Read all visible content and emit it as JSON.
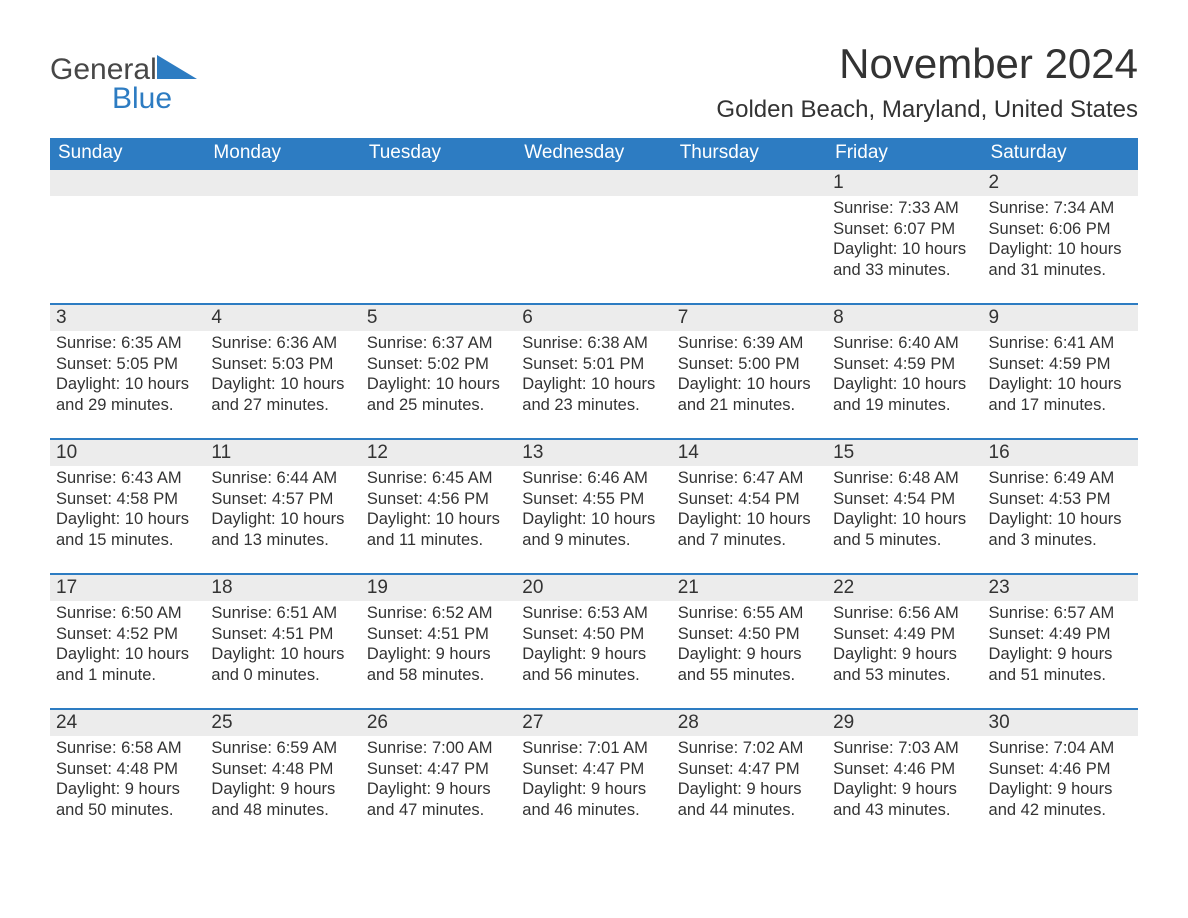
{
  "brand": {
    "name1": "General",
    "name2": "Blue",
    "accent": "#2d7cc2",
    "text_color": "#474747"
  },
  "title": "November 2024",
  "location": "Golden Beach, Maryland, United States",
  "weekdays": [
    "Sunday",
    "Monday",
    "Tuesday",
    "Wednesday",
    "Thursday",
    "Friday",
    "Saturday"
  ],
  "colors": {
    "header_bg": "#2d7cc2",
    "header_text": "#ffffff",
    "daynum_bg": "#ececec",
    "row_border": "#2d7cc2",
    "body_text": "#333333",
    "background": "#ffffff"
  },
  "fonts": {
    "month_title_size": 42,
    "location_size": 24,
    "weekday_size": 19,
    "daynum_size": 19,
    "body_size": 16.5
  },
  "layout": {
    "columns": 7,
    "rows": 5,
    "first_day_column": 5
  },
  "days": [
    {
      "n": "1",
      "sunrise": "Sunrise: 7:33 AM",
      "sunset": "Sunset: 6:07 PM",
      "dayl1": "Daylight: 10 hours",
      "dayl2": "and 33 minutes."
    },
    {
      "n": "2",
      "sunrise": "Sunrise: 7:34 AM",
      "sunset": "Sunset: 6:06 PM",
      "dayl1": "Daylight: 10 hours",
      "dayl2": "and 31 minutes."
    },
    {
      "n": "3",
      "sunrise": "Sunrise: 6:35 AM",
      "sunset": "Sunset: 5:05 PM",
      "dayl1": "Daylight: 10 hours",
      "dayl2": "and 29 minutes."
    },
    {
      "n": "4",
      "sunrise": "Sunrise: 6:36 AM",
      "sunset": "Sunset: 5:03 PM",
      "dayl1": "Daylight: 10 hours",
      "dayl2": "and 27 minutes."
    },
    {
      "n": "5",
      "sunrise": "Sunrise: 6:37 AM",
      "sunset": "Sunset: 5:02 PM",
      "dayl1": "Daylight: 10 hours",
      "dayl2": "and 25 minutes."
    },
    {
      "n": "6",
      "sunrise": "Sunrise: 6:38 AM",
      "sunset": "Sunset: 5:01 PM",
      "dayl1": "Daylight: 10 hours",
      "dayl2": "and 23 minutes."
    },
    {
      "n": "7",
      "sunrise": "Sunrise: 6:39 AM",
      "sunset": "Sunset: 5:00 PM",
      "dayl1": "Daylight: 10 hours",
      "dayl2": "and 21 minutes."
    },
    {
      "n": "8",
      "sunrise": "Sunrise: 6:40 AM",
      "sunset": "Sunset: 4:59 PM",
      "dayl1": "Daylight: 10 hours",
      "dayl2": "and 19 minutes."
    },
    {
      "n": "9",
      "sunrise": "Sunrise: 6:41 AM",
      "sunset": "Sunset: 4:59 PM",
      "dayl1": "Daylight: 10 hours",
      "dayl2": "and 17 minutes."
    },
    {
      "n": "10",
      "sunrise": "Sunrise: 6:43 AM",
      "sunset": "Sunset: 4:58 PM",
      "dayl1": "Daylight: 10 hours",
      "dayl2": "and 15 minutes."
    },
    {
      "n": "11",
      "sunrise": "Sunrise: 6:44 AM",
      "sunset": "Sunset: 4:57 PM",
      "dayl1": "Daylight: 10 hours",
      "dayl2": "and 13 minutes."
    },
    {
      "n": "12",
      "sunrise": "Sunrise: 6:45 AM",
      "sunset": "Sunset: 4:56 PM",
      "dayl1": "Daylight: 10 hours",
      "dayl2": "and 11 minutes."
    },
    {
      "n": "13",
      "sunrise": "Sunrise: 6:46 AM",
      "sunset": "Sunset: 4:55 PM",
      "dayl1": "Daylight: 10 hours",
      "dayl2": "and 9 minutes."
    },
    {
      "n": "14",
      "sunrise": "Sunrise: 6:47 AM",
      "sunset": "Sunset: 4:54 PM",
      "dayl1": "Daylight: 10 hours",
      "dayl2": "and 7 minutes."
    },
    {
      "n": "15",
      "sunrise": "Sunrise: 6:48 AM",
      "sunset": "Sunset: 4:54 PM",
      "dayl1": "Daylight: 10 hours",
      "dayl2": "and 5 minutes."
    },
    {
      "n": "16",
      "sunrise": "Sunrise: 6:49 AM",
      "sunset": "Sunset: 4:53 PM",
      "dayl1": "Daylight: 10 hours",
      "dayl2": "and 3 minutes."
    },
    {
      "n": "17",
      "sunrise": "Sunrise: 6:50 AM",
      "sunset": "Sunset: 4:52 PM",
      "dayl1": "Daylight: 10 hours",
      "dayl2": "and 1 minute."
    },
    {
      "n": "18",
      "sunrise": "Sunrise: 6:51 AM",
      "sunset": "Sunset: 4:51 PM",
      "dayl1": "Daylight: 10 hours",
      "dayl2": "and 0 minutes."
    },
    {
      "n": "19",
      "sunrise": "Sunrise: 6:52 AM",
      "sunset": "Sunset: 4:51 PM",
      "dayl1": "Daylight: 9 hours",
      "dayl2": "and 58 minutes."
    },
    {
      "n": "20",
      "sunrise": "Sunrise: 6:53 AM",
      "sunset": "Sunset: 4:50 PM",
      "dayl1": "Daylight: 9 hours",
      "dayl2": "and 56 minutes."
    },
    {
      "n": "21",
      "sunrise": "Sunrise: 6:55 AM",
      "sunset": "Sunset: 4:50 PM",
      "dayl1": "Daylight: 9 hours",
      "dayl2": "and 55 minutes."
    },
    {
      "n": "22",
      "sunrise": "Sunrise: 6:56 AM",
      "sunset": "Sunset: 4:49 PM",
      "dayl1": "Daylight: 9 hours",
      "dayl2": "and 53 minutes."
    },
    {
      "n": "23",
      "sunrise": "Sunrise: 6:57 AM",
      "sunset": "Sunset: 4:49 PM",
      "dayl1": "Daylight: 9 hours",
      "dayl2": "and 51 minutes."
    },
    {
      "n": "24",
      "sunrise": "Sunrise: 6:58 AM",
      "sunset": "Sunset: 4:48 PM",
      "dayl1": "Daylight: 9 hours",
      "dayl2": "and 50 minutes."
    },
    {
      "n": "25",
      "sunrise": "Sunrise: 6:59 AM",
      "sunset": "Sunset: 4:48 PM",
      "dayl1": "Daylight: 9 hours",
      "dayl2": "and 48 minutes."
    },
    {
      "n": "26",
      "sunrise": "Sunrise: 7:00 AM",
      "sunset": "Sunset: 4:47 PM",
      "dayl1": "Daylight: 9 hours",
      "dayl2": "and 47 minutes."
    },
    {
      "n": "27",
      "sunrise": "Sunrise: 7:01 AM",
      "sunset": "Sunset: 4:47 PM",
      "dayl1": "Daylight: 9 hours",
      "dayl2": "and 46 minutes."
    },
    {
      "n": "28",
      "sunrise": "Sunrise: 7:02 AM",
      "sunset": "Sunset: 4:47 PM",
      "dayl1": "Daylight: 9 hours",
      "dayl2": "and 44 minutes."
    },
    {
      "n": "29",
      "sunrise": "Sunrise: 7:03 AM",
      "sunset": "Sunset: 4:46 PM",
      "dayl1": "Daylight: 9 hours",
      "dayl2": "and 43 minutes."
    },
    {
      "n": "30",
      "sunrise": "Sunrise: 7:04 AM",
      "sunset": "Sunset: 4:46 PM",
      "dayl1": "Daylight: 9 hours",
      "dayl2": "and 42 minutes."
    }
  ]
}
